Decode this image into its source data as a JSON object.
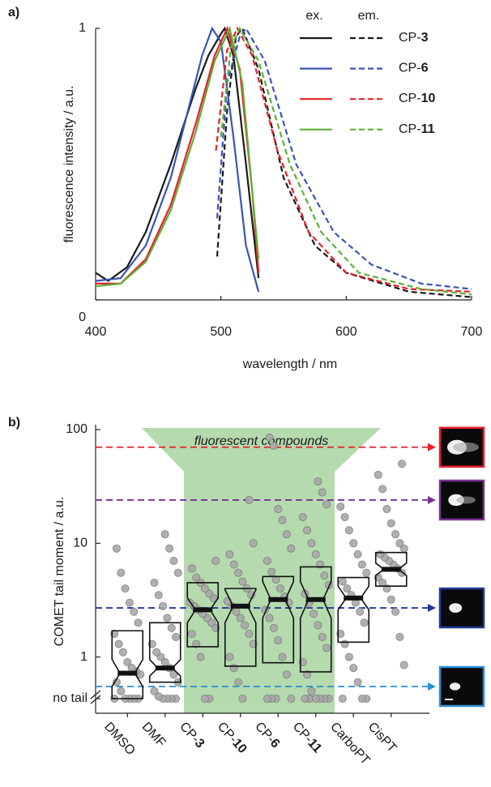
{
  "chart_data": [
    {
      "type": "line",
      "panel": "a)",
      "xlabel": "wavelength / nm",
      "ylabel": "fluorescence intensity / a.u.",
      "xlim": [
        400,
        700
      ],
      "ylim": [
        0,
        1
      ],
      "xticks": [
        400,
        500,
        600,
        700
      ],
      "yticks": [
        0,
        1
      ],
      "legend_headers": [
        "ex.",
        "em."
      ],
      "series": [
        {
          "name": "CP-3",
          "color": "#1a1a1a",
          "ex": {
            "x": [
              400,
              410,
              425,
              440,
              460,
              480,
              490,
              500,
              503,
              510,
              520,
              530
            ],
            "values": [
              0.1,
              0.07,
              0.12,
              0.25,
              0.5,
              0.78,
              0.9,
              0.98,
              1.0,
              0.9,
              0.5,
              0.08
            ]
          },
          "em": {
            "x": [
              497,
              505,
              512,
              517,
              530,
              550,
              575,
              600,
              650,
              700
            ],
            "values": [
              0.16,
              0.7,
              0.97,
              1.0,
              0.85,
              0.45,
              0.2,
              0.1,
              0.03,
              0.01
            ]
          }
        },
        {
          "name": "CP-6",
          "color": "#3a55b4",
          "ex": {
            "x": [
              400,
              420,
              440,
              460,
              475,
              485,
              493,
              500,
              510,
              520,
              530
            ],
            "values": [
              0.07,
              0.08,
              0.2,
              0.45,
              0.72,
              0.9,
              1.0,
              0.95,
              0.6,
              0.2,
              0.03
            ]
          },
          "em": {
            "x": [
              497,
              505,
              515,
              520,
              535,
              560,
              590,
              620,
              660,
              700
            ],
            "values": [
              0.3,
              0.8,
              0.97,
              1.0,
              0.88,
              0.5,
              0.25,
              0.13,
              0.06,
              0.04
            ]
          }
        },
        {
          "name": "CP-10",
          "color": "#e8202a",
          "ex": {
            "x": [
              400,
              420,
              440,
              460,
              480,
              495,
              505,
              515,
              525,
              530
            ],
            "values": [
              0.06,
              0.06,
              0.15,
              0.35,
              0.65,
              0.9,
              1.0,
              0.85,
              0.4,
              0.1
            ]
          },
          "em": {
            "x": [
              496,
              505,
              513,
              525,
              545,
              570,
              600,
              650,
              700
            ],
            "values": [
              0.55,
              0.92,
              1.0,
              0.9,
              0.55,
              0.25,
              0.1,
              0.04,
              0.03
            ]
          }
        },
        {
          "name": "CP-11",
          "color": "#5cb034",
          "ex": {
            "x": [
              400,
              420,
              440,
              460,
              480,
              495,
              507,
              517,
              527,
              530
            ],
            "values": [
              0.05,
              0.06,
              0.14,
              0.33,
              0.62,
              0.88,
              1.0,
              0.8,
              0.3,
              0.15
            ]
          },
          "em": {
            "x": [
              500,
              508,
              515,
              530,
              555,
              580,
              610,
              660,
              700
            ],
            "values": [
              0.6,
              0.93,
              1.0,
              0.88,
              0.5,
              0.25,
              0.1,
              0.04,
              0.02
            ]
          }
        }
      ]
    },
    {
      "type": "box",
      "panel": "b)",
      "ylabel": "COMET tail moment / a.u.",
      "log_scale": true,
      "ylim": [
        0.32,
        100
      ],
      "yticks": [
        {
          "value": 0.43,
          "label": "no tail"
        },
        1,
        10,
        100
      ],
      "categories": [
        "DMSO",
        "DMF",
        "CP-3",
        "CP-10",
        "CP-6",
        "CP-11",
        "CarboPT",
        "CisPT"
      ],
      "category_colors": [
        "#1a1a1a",
        "#1a1a1a",
        "#3c5a14",
        "#3c5a14",
        "#3c5a14",
        "#3c5a14",
        "#1a1a1a",
        "#1a1a1a"
      ],
      "highlight": {
        "label": "fluorescent compounds",
        "color": "#a8d4a0",
        "from": "CP-3",
        "to": "CP-11"
      },
      "boxes": [
        {
          "q1": 0.43,
          "median": 0.72,
          "q3": 1.7,
          "notch": [
            0.55,
            0.95
          ]
        },
        {
          "q1": 0.6,
          "median": 0.8,
          "q3": 2.0,
          "notch": [
            0.68,
            0.95
          ]
        },
        {
          "q1": 1.23,
          "median": 2.6,
          "q3": 4.5,
          "notch": [
            2.0,
            3.3
          ]
        },
        {
          "q1": 0.83,
          "median": 2.8,
          "q3": 4.0,
          "notch": [
            2.0,
            3.9
          ]
        },
        {
          "q1": 0.89,
          "median": 3.2,
          "q3": 5.1,
          "notch": [
            2.2,
            4.6
          ]
        },
        {
          "q1": 0.74,
          "median": 3.2,
          "q3": 6.2,
          "notch": [
            2.2,
            4.6
          ]
        },
        {
          "q1": 1.35,
          "median": 3.3,
          "q3": 5.0,
          "notch": [
            2.6,
            4.2
          ]
        },
        {
          "q1": 4.2,
          "median": 5.9,
          "q3": 8.3,
          "notch": [
            5.2,
            6.7
          ]
        }
      ],
      "point_color": "#a8a8a8",
      "points": [
        [
          0,
          0,
          0,
          0,
          0,
          0.5,
          0.6,
          0.7,
          0.75,
          0.8,
          0.9,
          1.1,
          1.3,
          1.6,
          2.0,
          2.5,
          3.0,
          4.0,
          5.5,
          9.0
        ],
        [
          0,
          0,
          0,
          0,
          0.45,
          0.5,
          0.6,
          0.7,
          0.8,
          0.9,
          1.0,
          1.1,
          1.3,
          1.5,
          1.8,
          2.2,
          2.8,
          3.5,
          4.5,
          5.5,
          7,
          9,
          12
        ],
        [
          0,
          0,
          1.0,
          1.3,
          1.6,
          1.8,
          2.0,
          2.2,
          2.4,
          2.6,
          2.8,
          3.0,
          3.3,
          3.6,
          4.0,
          4.5,
          5,
          6,
          7
        ],
        [
          0,
          0.6,
          0.8,
          1.0,
          1.3,
          1.6,
          1.9,
          2.2,
          2.5,
          2.8,
          3.1,
          3.5,
          4,
          4.6,
          5.5,
          6.5,
          8,
          10,
          24
        ],
        [
          0,
          0,
          0,
          0,
          0.7,
          1.0,
          1.4,
          1.8,
          2.2,
          2.6,
          3.0,
          3.4,
          4,
          4.8,
          5.6,
          7,
          9,
          12,
          16,
          20,
          72,
          85
        ],
        [
          0,
          0,
          0,
          0,
          0,
          0,
          0.5,
          0.7,
          0.9,
          1.2,
          1.5,
          1.9,
          2.4,
          3.0,
          3.6,
          4.3,
          5.2,
          6.5,
          8,
          10,
          13,
          17,
          22,
          28,
          35
        ],
        [
          0,
          0,
          0,
          0.6,
          0.8,
          1.0,
          1.3,
          1.6,
          2.0,
          2.5,
          3.0,
          3.5,
          4,
          4.6,
          5.5,
          6.5,
          8,
          10,
          13,
          17,
          21
        ],
        [
          0.85,
          1.5,
          2.5,
          3.2,
          4,
          4.5,
          5,
          5.5,
          6,
          6.5,
          7,
          7.5,
          8,
          9,
          10,
          12,
          15,
          20,
          30,
          40,
          50
        ]
      ],
      "reference_lines": [
        {
          "value": 70,
          "color": "#e8202a"
        },
        {
          "value": 24,
          "color": "#7b3294"
        },
        {
          "value": 2.7,
          "color": "#23399a"
        },
        {
          "value": 0.55,
          "color": "#2a8fd6"
        }
      ]
    }
  ]
}
